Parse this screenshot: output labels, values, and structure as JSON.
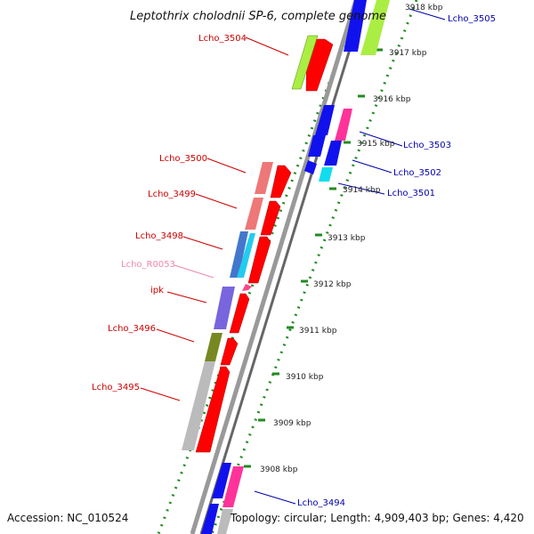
{
  "title": "Leptothrix cholodnii SP-6, complete genome",
  "accession": "Accession: NC_010524",
  "topology": "Topology: circular; Length: 4,909,403 bp; Genes: 4,420",
  "colors": {
    "forward_label": "#cc0000",
    "reverse_label": "#0000aa",
    "rna_label": "#ee88aa",
    "kbp_tick": "#228B22",
    "backbone": "#888888"
  },
  "kbp_labels": [
    "3918 kbp",
    "3917 kbp",
    "3916 kbp",
    "3915 kbp",
    "3914 kbp",
    "3913 kbp",
    "3912 kbp",
    "3911 kbp",
    "3910 kbp",
    "3909 kbp",
    "3908 kbp"
  ],
  "gene_labels_left": [
    "Lcho_3504",
    "Lcho_3500",
    "Lcho_3499",
    "Lcho_3498",
    "Lcho_R0053",
    "ipk",
    "Lcho_3496",
    "Lcho_3495"
  ],
  "gene_labels_right": [
    "Lcho_3505",
    "Lcho_3503",
    "Lcho_3502",
    "Lcho_3501",
    "Lcho_3494"
  ]
}
